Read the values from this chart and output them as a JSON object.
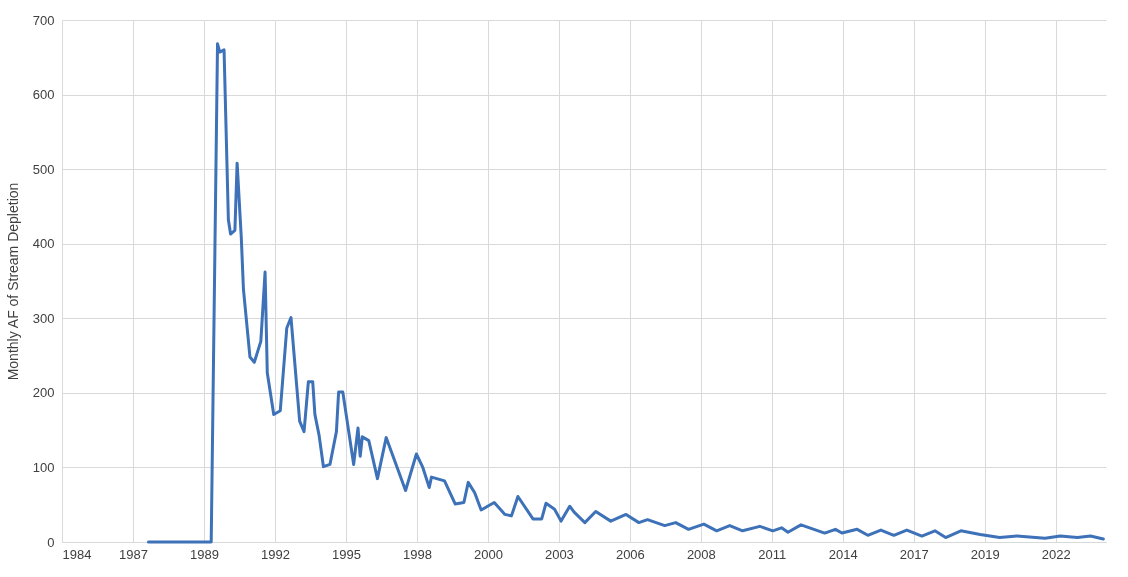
{
  "chart_data": {
    "type": "line",
    "ylabel": "Monthly AF of Stream Depletion",
    "x": [
      "1987-09",
      "1990-02",
      "1990-05",
      "1990-06",
      "1990-08",
      "1990-10",
      "1990-11",
      "1991-01",
      "1991-02",
      "1991-04",
      "1991-05",
      "1991-08",
      "1991-10",
      "1992-01",
      "1992-03",
      "1992-04",
      "1992-07",
      "1992-10",
      "1993-01",
      "1993-03",
      "1993-07",
      "1993-09",
      "1993-11",
      "1994-01",
      "1994-02",
      "1994-04",
      "1994-06",
      "1994-09",
      "1994-12",
      "1995-01",
      "1995-03",
      "1995-08",
      "1995-10",
      "1995-11",
      "1995-12",
      "1996-03",
      "1996-07",
      "1996-11",
      "1997-08",
      "1998-01",
      "1998-04",
      "1998-07",
      "1998-08",
      "1999-02",
      "1999-07",
      "1999-11",
      "2000-01",
      "2000-04",
      "2000-07",
      "2001-01",
      "2001-06",
      "2001-09",
      "2001-12",
      "2002-07",
      "2002-11",
      "2003-01",
      "2003-05",
      "2003-08",
      "2003-12",
      "2004-02",
      "2004-07",
      "2004-12",
      "2005-07",
      "2006-02",
      "2006-08",
      "2006-12",
      "2007-08",
      "2008-01",
      "2008-07",
      "2009-02",
      "2009-08",
      "2010-02",
      "2010-08",
      "2011-04",
      "2011-10",
      "2012-02",
      "2012-05",
      "2012-11",
      "2013-10",
      "2014-03",
      "2014-06",
      "2015-01",
      "2015-06",
      "2015-12",
      "2016-06",
      "2016-12",
      "2017-07",
      "2018-01",
      "2018-06",
      "2019-01",
      "2019-10",
      "2020-07",
      "2021-03",
      "2022-04",
      "2022-11",
      "2023-07",
      "2024-01",
      "2024-07"
    ],
    "series": [
      {
        "color": "#3d71b8",
        "values": [
          0,
          0,
          668,
          657,
          660,
          432,
          413,
          418,
          508,
          408,
          339,
          248,
          241,
          269,
          362,
          227,
          171,
          176,
          287,
          301,
          162,
          148,
          215,
          215,
          171,
          143,
          101,
          104,
          148,
          201,
          201,
          104,
          153,
          115,
          141,
          136,
          85,
          140,
          69,
          118,
          100,
          73,
          87,
          82,
          51,
          53,
          80,
          66,
          43,
          53,
          37,
          35,
          61,
          31,
          31,
          52,
          44,
          28,
          48,
          40,
          26,
          41,
          28,
          37,
          26,
          30,
          22,
          26,
          17,
          24,
          15,
          22,
          15,
          21,
          15,
          19,
          13,
          23,
          12,
          17,
          12,
          17,
          9,
          16,
          9,
          16,
          8,
          15,
          6,
          15,
          10,
          6,
          8,
          5,
          8,
          6,
          8,
          4
        ]
      }
    ],
    "xlim": [
      "1984-05-01",
      "2024-08-07"
    ],
    "xticks": [
      {
        "value": "1984-05-01",
        "label": "1984"
      },
      {
        "value": "1987-01-26",
        "label": "1987"
      },
      {
        "value": "1989-10-22",
        "label": "1989"
      },
      {
        "value": "1992-07-18",
        "label": "1992"
      },
      {
        "value": "1995-04-14",
        "label": "1995"
      },
      {
        "value": "1998-01-08",
        "label": "1998"
      },
      {
        "value": "2000-10-04",
        "label": "2000"
      },
      {
        "value": "2003-07-01",
        "label": "2003"
      },
      {
        "value": "2006-03-27",
        "label": "2006"
      },
      {
        "value": "2008-12-21",
        "label": "2008"
      },
      {
        "value": "2011-09-17",
        "label": "2011"
      },
      {
        "value": "2014-06-13",
        "label": "2014"
      },
      {
        "value": "2017-03-09",
        "label": "2017"
      },
      {
        "value": "2019-12-04",
        "label": "2019"
      },
      {
        "value": "2022-08-30",
        "label": "2022"
      }
    ],
    "ylim": [
      0,
      700
    ],
    "yticks": [
      0,
      100,
      200,
      300,
      400,
      500,
      600,
      700
    ],
    "grid": true,
    "marker": "none",
    "line_style": "solid"
  }
}
